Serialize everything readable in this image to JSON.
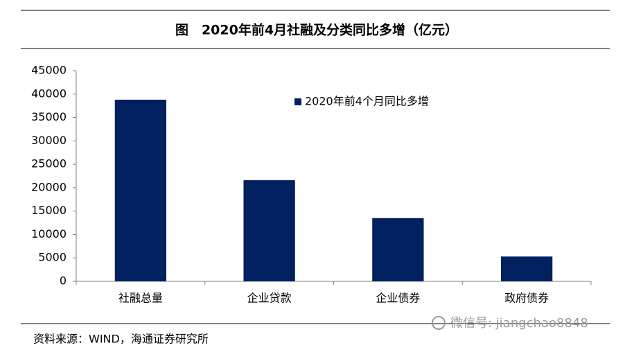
{
  "chart_data": {
    "type": "bar",
    "title": "图　2020年前4月社融及分类同比多增（亿元）",
    "categories": [
      "社融总量",
      "企业贷款",
      "企业债券",
      "政府债券"
    ],
    "series": [
      {
        "name": "2020年前4个月同比多增",
        "color": "#002060",
        "values": [
          38800,
          21600,
          13500,
          5300
        ]
      }
    ],
    "ylim": [
      0,
      45000
    ],
    "yticks": [
      0,
      5000,
      10000,
      15000,
      20000,
      25000,
      30000,
      35000,
      40000,
      45000
    ],
    "grid": false,
    "legend": "top-center",
    "source": "资料来源：WIND，海通证券研究所",
    "watermark": "微信号: jiangchao8848"
  }
}
